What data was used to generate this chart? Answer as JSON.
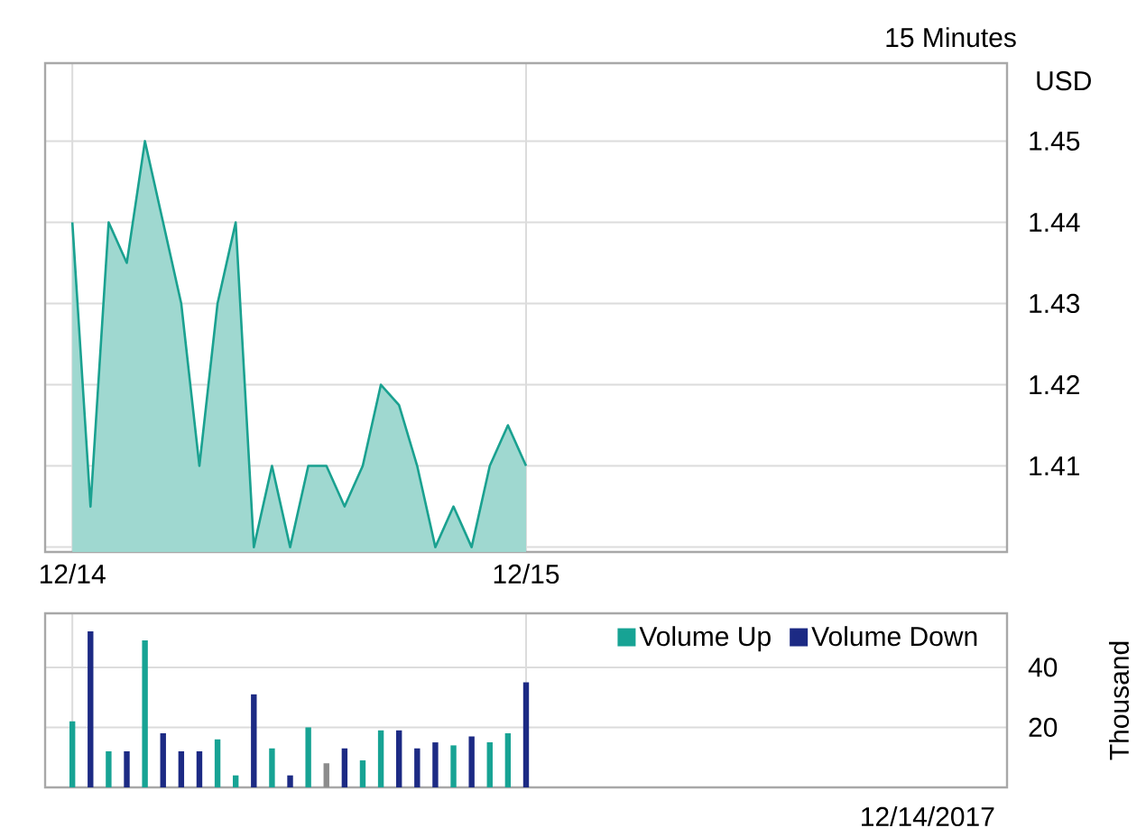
{
  "chart_data": [
    {
      "type": "area",
      "subtitle": "15 Minutes",
      "ylabel": "USD",
      "categories": [
        null,
        "12/14",
        null,
        null,
        null,
        null,
        null,
        null,
        null,
        null,
        null,
        null,
        null,
        null,
        null,
        null,
        null,
        null,
        null,
        null,
        null,
        null,
        null,
        null,
        null,
        null,
        "12/15",
        null,
        null,
        null,
        null,
        null,
        null,
        null,
        null,
        null,
        null,
        null,
        null,
        null,
        null,
        null,
        null,
        null,
        null,
        null,
        null,
        null,
        null,
        null,
        null,
        null,
        null
      ],
      "values": [
        null,
        1.44,
        1.405,
        1.44,
        1.435,
        1.45,
        1.44,
        1.43,
        1.41,
        1.43,
        1.44,
        1.4,
        1.41,
        1.4,
        1.41,
        1.41,
        1.405,
        1.41,
        1.42,
        1.4175,
        1.41,
        1.4,
        1.405,
        1.4,
        1.41,
        1.415,
        1.41,
        null,
        null,
        null,
        null,
        null,
        null,
        null,
        null,
        null,
        null,
        null,
        null,
        null,
        null,
        null,
        null,
        null,
        null,
        null,
        null,
        null,
        null,
        null,
        null,
        null,
        null
      ],
      "color": "#1aa190",
      "ylim": [
        1.3994,
        1.4596
      ],
      "yticks": [
        {
          "value": 1.4,
          "label": null
        },
        1.41,
        1.42,
        1.43,
        1.44,
        1.45
      ],
      "grid": true
    },
    {
      "type": "bar",
      "ylabel": "Thousand",
      "categories": [
        null,
        null,
        null,
        null,
        null,
        null,
        null,
        null,
        null,
        null,
        null,
        null,
        null,
        null,
        null,
        null,
        null,
        null,
        null,
        null,
        null,
        null,
        null,
        null,
        null,
        null,
        null,
        null,
        null,
        null,
        null,
        null,
        null,
        null,
        null,
        null,
        null,
        null,
        null,
        null,
        null,
        null,
        null,
        null,
        null,
        null,
        null,
        null,
        null,
        null,
        null,
        null,
        null
      ],
      "series": [
        {
          "name": "Volume Up",
          "color": "#17a394",
          "values": [
            null,
            22,
            null,
            12,
            null,
            49,
            null,
            null,
            null,
            16,
            4,
            null,
            13,
            null,
            20,
            null,
            null,
            9,
            19,
            null,
            null,
            null,
            14,
            null,
            15,
            18,
            null,
            null,
            null,
            null,
            null,
            null,
            null,
            null,
            null,
            null,
            null,
            null,
            null,
            null,
            null,
            null,
            null,
            null,
            null,
            null,
            null,
            null,
            null,
            null,
            null,
            null,
            null
          ]
        },
        {
          "name": "Volume Down",
          "color": "#1c2a84",
          "values": [
            null,
            null,
            52,
            null,
            12,
            null,
            18,
            12,
            12,
            null,
            null,
            31,
            null,
            4,
            null,
            null,
            13,
            null,
            null,
            19,
            13,
            15,
            null,
            17,
            null,
            null,
            35,
            null,
            null,
            null,
            null,
            null,
            null,
            null,
            null,
            null,
            null,
            null,
            null,
            null,
            null,
            null,
            null,
            null,
            null,
            null,
            null,
            null,
            null,
            null,
            null,
            null,
            null
          ]
        },
        {
          "color": "#8c8c8c",
          "values": [
            null,
            null,
            null,
            null,
            null,
            null,
            null,
            null,
            null,
            null,
            null,
            null,
            null,
            null,
            null,
            8,
            null,
            null,
            null,
            null,
            null,
            null,
            null,
            null,
            null,
            null,
            null,
            null,
            null,
            null,
            null,
            null,
            null,
            null,
            null,
            null,
            null,
            null,
            null,
            null,
            null,
            null,
            null,
            null,
            null,
            null,
            null,
            null,
            null,
            null,
            null,
            null,
            null
          ]
        }
      ],
      "ylim": [
        0,
        58
      ],
      "yticks": [
        20,
        40
      ],
      "grid": true,
      "legend": "top right",
      "tick_labels": "y",
      "annotations": [
        "12/14/2017"
      ]
    }
  ]
}
